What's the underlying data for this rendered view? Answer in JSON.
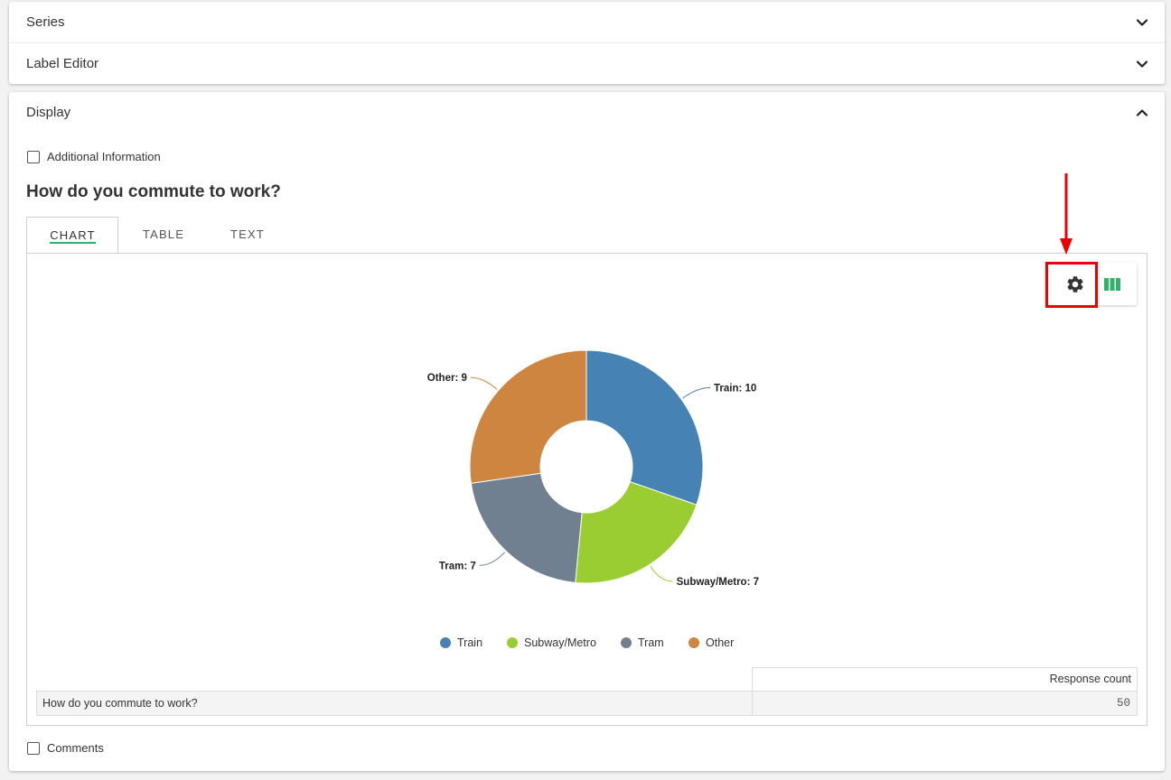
{
  "accordion": {
    "series_label": "Series",
    "label_editor_label": "Label Editor",
    "display_label": "Display"
  },
  "display": {
    "additional_information_label": "Additional Information",
    "question_title": "How do you commute to work?",
    "tabs": [
      {
        "label": "CHART",
        "active": true
      },
      {
        "label": "TABLE",
        "active": false
      },
      {
        "label": "TEXT",
        "active": false
      }
    ],
    "comments_label": "Comments"
  },
  "toolbar": {
    "settings_icon": "gear-icon",
    "chart_type_icon": "column-chart-icon",
    "highlight_color": "#ee0000",
    "chart_type_color": "#2fb36b"
  },
  "chart_data": {
    "type": "pie",
    "variant": "donut",
    "categories": [
      "Train",
      "Subway/Metro",
      "Tram",
      "Other"
    ],
    "values": [
      10,
      7,
      7,
      9
    ],
    "colors": [
      "#4682b4",
      "#9acd32",
      "#708090",
      "#cd853f"
    ],
    "data_labels": [
      "Train: 10",
      "Subway/Metro: 7",
      "Tram: 7",
      "Other: 9"
    ],
    "legend": "bottom"
  },
  "stats_table": {
    "header": "Response count",
    "row_label": "How do you commute to work?",
    "row_value": "50"
  }
}
